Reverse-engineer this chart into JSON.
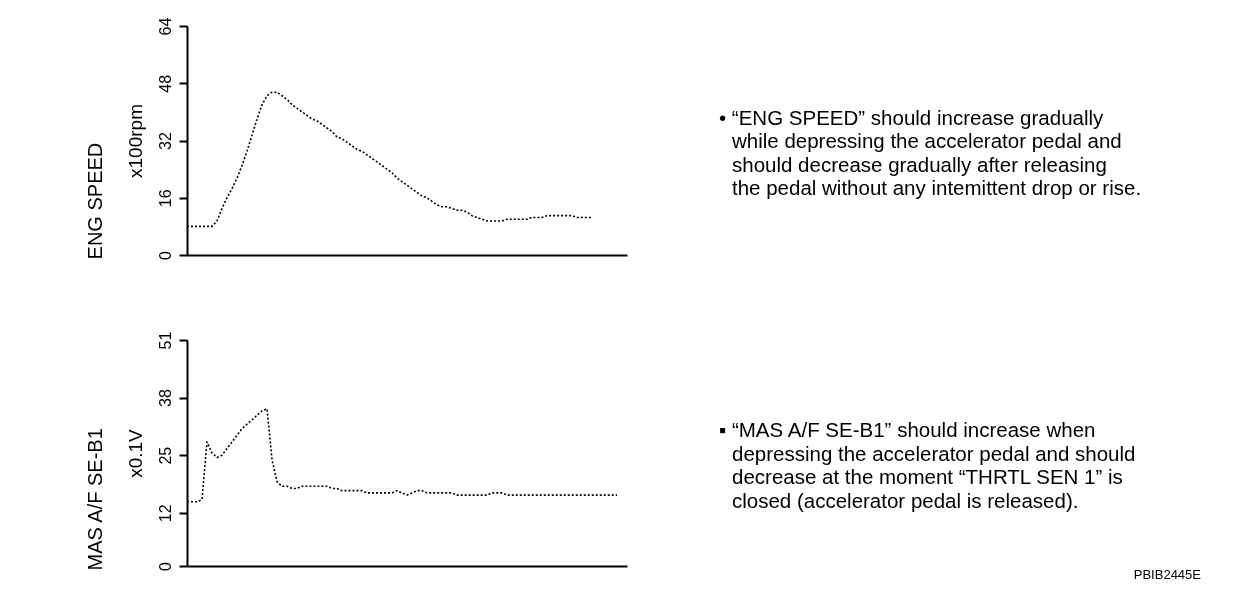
{
  "chart_data": [
    {
      "type": "line",
      "title": "ENG SPEED",
      "ylabel": "x100rpm",
      "categories": [
        null,
        null,
        null,
        null,
        null,
        null,
        null,
        null,
        null,
        null,
        null,
        null,
        null,
        null,
        null,
        null,
        null,
        null,
        null,
        null,
        null,
        null,
        null,
        null,
        null,
        null,
        null,
        null,
        null,
        null,
        null,
        null,
        null,
        null,
        null,
        null,
        null,
        null,
        null,
        null,
        null,
        null,
        null,
        null,
        null,
        null,
        null,
        null,
        null,
        null,
        null,
        null,
        null,
        null,
        null,
        null,
        null,
        null,
        null,
        null,
        null,
        null,
        null,
        null,
        null,
        null,
        null,
        null,
        null,
        null,
        null,
        null,
        null,
        null,
        null,
        null,
        null,
        null,
        null,
        null,
        null,
        null,
        null,
        null,
        null,
        null,
        null,
        null,
        null
      ],
      "series": [
        {
          "color": "#000000",
          "values": [
            8,
            8,
            8,
            8,
            8,
            8,
            9.5,
            13,
            16,
            18.5,
            21.5,
            25,
            29,
            33.5,
            38,
            42,
            44.5,
            45.5,
            45.5,
            44.5,
            43.5,
            42,
            41,
            40,
            39,
            38,
            37.5,
            36.5,
            35.5,
            34.5,
            33,
            32.5,
            31.5,
            30.5,
            29.5,
            29,
            28,
            27,
            26,
            25,
            24,
            23,
            21.5,
            20.5,
            19.5,
            18.5,
            17.5,
            16.5,
            16,
            15,
            14,
            13.5,
            13.5,
            13,
            12.5,
            12.5,
            12,
            11,
            10.5,
            10,
            9.5,
            9.5,
            9.5,
            9.5,
            10,
            10,
            10,
            10,
            10,
            10.5,
            10.5,
            10.5,
            11,
            11,
            11,
            11,
            11,
            11,
            10.5,
            10.5,
            10.5,
            10.5,
            null,
            null,
            null,
            null,
            null,
            null,
            null
          ]
        }
      ],
      "ylim": [
        0,
        64
      ],
      "yticks": [
        0,
        16,
        32,
        48,
        64
      ],
      "grid": false,
      "marker": "none",
      "line_style": "dotted",
      "tick_labels": "y",
      "annotations": [
        "• “ENG SPEED” should increase gradually\nwhile depressing the accelerator pedal and\nshould decrease gradually after releasing\nthe pedal without any intemittent drop or rise."
      ]
    },
    {
      "type": "line",
      "title": "MAS A/F SE-B1",
      "ylabel": "x0.1V",
      "categories": [
        null,
        null,
        null,
        null,
        null,
        null,
        null,
        null,
        null,
        null,
        null,
        null,
        null,
        null,
        null,
        null,
        null,
        null,
        null,
        null,
        null,
        null,
        null,
        null,
        null,
        null,
        null,
        null,
        null,
        null,
        null,
        null,
        null,
        null,
        null,
        null,
        null,
        null,
        null,
        null,
        null,
        null,
        null,
        null,
        null,
        null,
        null,
        null,
        null,
        null,
        null,
        null,
        null,
        null,
        null,
        null,
        null,
        null,
        null,
        null,
        null,
        null,
        null,
        null,
        null,
        null,
        null,
        null,
        null,
        null,
        null,
        null,
        null,
        null,
        null,
        null,
        null,
        null,
        null,
        null,
        null,
        null,
        null,
        null,
        null,
        null,
        null,
        null,
        null
      ],
      "series": [
        {
          "color": "#000000",
          "values": [
            14.5,
            14.5,
            14.5,
            15,
            28,
            25.5,
            24.5,
            25,
            26.5,
            28,
            29.5,
            31,
            32,
            33,
            34,
            35,
            35.5,
            24,
            19,
            18,
            18,
            17.5,
            17.5,
            18,
            18,
            18,
            18,
            18,
            18,
            17.5,
            17.5,
            17,
            17,
            17,
            17,
            17,
            16.5,
            16.5,
            16.5,
            16.5,
            16.5,
            16.5,
            17,
            16.5,
            16,
            16.5,
            17,
            17,
            16.5,
            16.5,
            16.5,
            16.5,
            16.5,
            16.5,
            16,
            16,
            16,
            16,
            16,
            16,
            16,
            16.5,
            16.5,
            16.5,
            16,
            16,
            16,
            16,
            16,
            16,
            16,
            16,
            16,
            16,
            16,
            16,
            16,
            16,
            16,
            16,
            16,
            16,
            16,
            16,
            16,
            16,
            16,
            null,
            null
          ]
        }
      ],
      "ylim": [
        0,
        51
      ],
      "yticks": [
        0,
        12,
        25,
        38,
        51
      ],
      "grid": false,
      "marker": "none",
      "line_style": "dotted",
      "tick_labels": "y",
      "annotations": [
        "▪ “MAS A/F SE-B1” should increase when\ndepressing the accelerator pedal and should\ndecrease at the moment “THRTL SEN 1” is\nclosed (accelerator pedal is released).",
        "PBIB2445E"
      ]
    }
  ]
}
